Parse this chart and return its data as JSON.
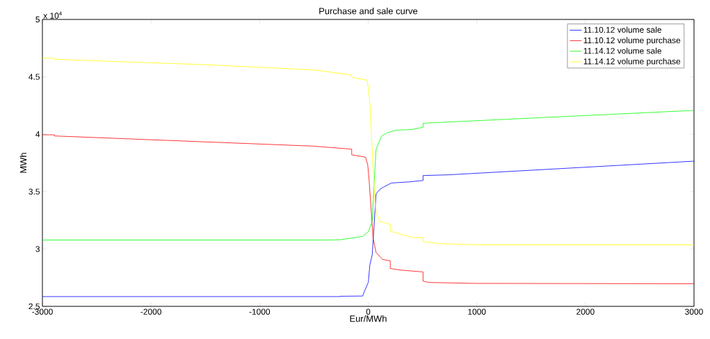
{
  "chart_data": {
    "type": "line",
    "title": "Purchase and sale curve",
    "xlabel": "Eur/MWh",
    "ylabel": "MWh",
    "annotations": [
      "x 10$^{4}$"
    ],
    "xlim": [
      -3000,
      3000
    ],
    "xticks": [
      -3000,
      -2000,
      -1000,
      0,
      1000,
      2000,
      3000
    ],
    "ylim": [
      2.5,
      5
    ],
    "yticks": [
      2.5,
      3,
      3.5,
      4,
      4.5,
      5
    ],
    "grid": false,
    "legend": "top right",
    "marker": "none",
    "line_style": "solid",
    "series": [
      {
        "name": "11.10.12 volume sale",
        "color": "#0000ff",
        "x": [
          -3000,
          -260,
          -260,
          -51,
          -35,
          1,
          15,
          37,
          53,
          72,
          108,
          143,
          214,
          380,
          505,
          505,
          737,
          3000
        ],
        "values": [
          2.585,
          2.585,
          2.588,
          2.59,
          2.63,
          2.71,
          2.86,
          2.95,
          3.19,
          3.48,
          3.52,
          3.54,
          3.575,
          3.585,
          3.597,
          3.64,
          3.646,
          3.765
        ]
      },
      {
        "name": "11.10.12 volume purchase",
        "color": "#ff0000",
        "x": [
          -3000,
          -2890,
          -2890,
          -505,
          -152,
          -152,
          -24,
          -4,
          8,
          25,
          44,
          72,
          130,
          203,
          203,
          310,
          505,
          505,
          560,
          995,
          3000
        ],
        "values": [
          3.995,
          3.995,
          3.985,
          3.896,
          3.87,
          3.82,
          3.8,
          3.73,
          3.6,
          3.37,
          3.1,
          2.97,
          2.91,
          2.896,
          2.83,
          2.815,
          2.8,
          2.72,
          2.708,
          2.7,
          2.697
        ]
      },
      {
        "name": "11.14.12 volume sale",
        "color": "#00ff00",
        "x": [
          -3000,
          -397,
          -260,
          -145,
          -51,
          1,
          37,
          53,
          72,
          120,
          167,
          251,
          393,
          505,
          505,
          560,
          2900,
          3000
        ],
        "values": [
          3.078,
          3.078,
          3.08,
          3.096,
          3.11,
          3.15,
          3.24,
          3.55,
          3.866,
          3.98,
          4.01,
          4.035,
          4.04,
          4.06,
          4.095,
          4.098,
          4.203,
          4.207
        ]
      },
      {
        "name": "11.14.12 volume purchase",
        "color": "#ffff00",
        "x": [
          -3000,
          -2890,
          -2890,
          -1487,
          -500,
          -152,
          -152,
          -10,
          1,
          17,
          40,
          56,
          69,
          108,
          203,
          203,
          405,
          505,
          505,
          654,
          1000,
          3000
        ],
        "values": [
          4.662,
          4.662,
          4.653,
          4.605,
          4.56,
          4.516,
          4.496,
          4.47,
          4.405,
          4.25,
          3.8,
          3.51,
          3.33,
          3.24,
          3.215,
          3.155,
          3.1,
          3.1,
          3.064,
          3.047,
          3.036,
          3.036
        ]
      }
    ]
  }
}
